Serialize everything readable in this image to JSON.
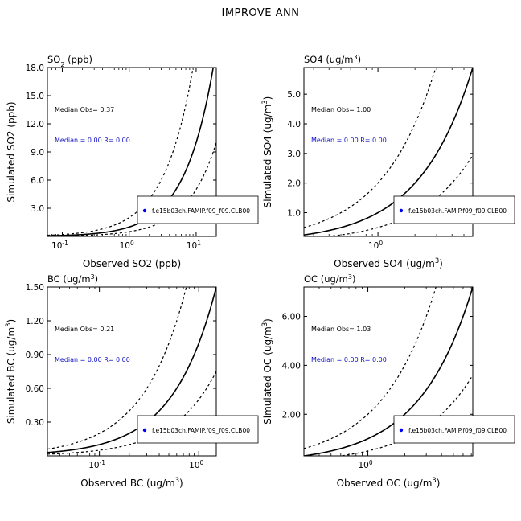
{
  "title": "IMPROVE ANN",
  "colors": {
    "axis": "#000000",
    "median_text": "#1010c8",
    "marker": "#0000ff"
  },
  "legend_label": "f.e15b03ch.FAMIP.f09_f09.CLB00",
  "chart_data": [
    {
      "type": "scatter",
      "title": "SO2 (ppb)",
      "xlabel": "Observed SO2 (ppb)",
      "ylabel": "Simulated SO2 (ppb)",
      "xscale": "log",
      "xlim": [
        0.06,
        20
      ],
      "ylim": [
        0,
        18
      ],
      "xticks": [
        {
          "v": 0.1,
          "label": "10"
        },
        {
          "v": 1,
          "label": "10"
        },
        {
          "v": 10,
          "label": "10"
        }
      ],
      "xtick_exponents": [
        "-1",
        "0",
        "1"
      ],
      "yticks": [
        3,
        6,
        9,
        12,
        15,
        18
      ],
      "ytick_labels": [
        "3.0",
        "6.0",
        "9.0",
        "12.0",
        "15.0",
        "18.0"
      ],
      "median_obs": "Median Obs= 0.37",
      "median_model": "Median = 0.00 R= 0.00",
      "points": [],
      "reference_lines": [
        "1:1",
        "2:1",
        "1:2"
      ],
      "grid": false,
      "legend_position": "bottom-right"
    },
    {
      "type": "scatter",
      "title": "SO4 (ug/m3)",
      "xlabel": "Observed SO4 (ug/m3)",
      "ylabel": "Simulated SO4 (ug/m3)",
      "xscale": "log",
      "xlim": [
        0.25,
        5.9
      ],
      "ylim": [
        0.2,
        5.9
      ],
      "xticks": [
        {
          "v": 1,
          "label": "10"
        }
      ],
      "xtick_exponents": [
        "0"
      ],
      "yticks": [
        1,
        2,
        3,
        4,
        5
      ],
      "ytick_labels": [
        "1.0",
        "2.0",
        "3.0",
        "4.0",
        "5.0"
      ],
      "median_obs": "Median Obs= 1.00",
      "median_model": "Median = 0.00 R= 0.00",
      "points": [],
      "reference_lines": [
        "1:1",
        "2:1",
        "1:2"
      ],
      "grid": false,
      "legend_position": "bottom-right"
    },
    {
      "type": "scatter",
      "title": "BC (ug/m3)",
      "xlabel": "Observed BC (ug/m3)",
      "ylabel": "Simulated BC (ug/m3)",
      "xscale": "log",
      "xlim": [
        0.03,
        1.5
      ],
      "ylim": [
        0,
        1.5
      ],
      "xticks": [
        {
          "v": 0.1,
          "label": "10"
        },
        {
          "v": 1,
          "label": "10"
        }
      ],
      "xtick_exponents": [
        "-1",
        "0"
      ],
      "yticks": [
        0.3,
        0.6,
        0.9,
        1.2,
        1.5
      ],
      "ytick_labels": [
        "0.30",
        "0.60",
        "0.90",
        "1.20",
        "1.50"
      ],
      "median_obs": "Median Obs= 0.21",
      "median_model": "Median = 0.00 R= 0.00",
      "points": [],
      "reference_lines": [
        "1:1",
        "2:1",
        "1:2"
      ],
      "grid": false,
      "legend_position": "bottom-right"
    },
    {
      "type": "scatter",
      "title": "OC (ug/m3)",
      "xlabel": "Observed OC (ug/m3)",
      "ylabel": "Simulated OC (ug/m3)",
      "xscale": "log",
      "xlim": [
        0.3,
        7.2
      ],
      "ylim": [
        0.3,
        7.2
      ],
      "xticks": [
        {
          "v": 1,
          "label": "10"
        }
      ],
      "xtick_exponents": [
        "0"
      ],
      "yticks": [
        2,
        4,
        6
      ],
      "ytick_labels": [
        "2.00",
        "4.00",
        "6.00"
      ],
      "median_obs": "Median Obs= 1.03",
      "median_model": "Median = 0.00 R= 0.00",
      "points": [],
      "reference_lines": [
        "1:1",
        "2:1",
        "1:2"
      ],
      "grid": false,
      "legend_position": "bottom-right"
    }
  ]
}
